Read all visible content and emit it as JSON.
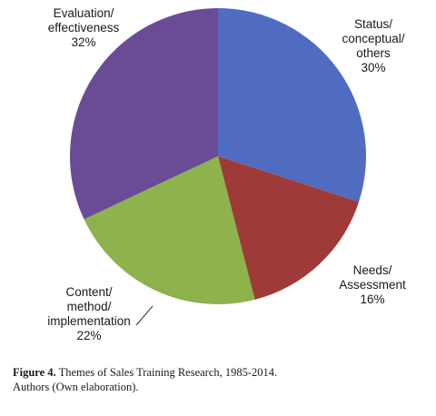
{
  "chart_data": {
    "type": "pie",
    "slices": [
      {
        "label": [
          "Status/",
          "conceptual/",
          "others"
        ],
        "value": 30,
        "value_label": "30%",
        "color": "#4f6cc0"
      },
      {
        "label": [
          "Needs/",
          "Assessment"
        ],
        "value": 16,
        "value_label": "16%",
        "color": "#9e3a38"
      },
      {
        "label": [
          "Content/",
          "method/",
          "implementation"
        ],
        "value": 22,
        "value_label": "22%",
        "color": "#8eb24c"
      },
      {
        "label": [
          "Evaluation/",
          "effectiveness"
        ],
        "value": 32,
        "value_label": "32%",
        "color": "#6a4c96"
      }
    ],
    "start": "top",
    "direction": "clockwise",
    "legend": "none"
  },
  "caption": {
    "figure_number": "Figure 4.",
    "title": "Themes of Sales Training Research, 1985-2014.",
    "source": "Authors (Own elaboration)."
  }
}
